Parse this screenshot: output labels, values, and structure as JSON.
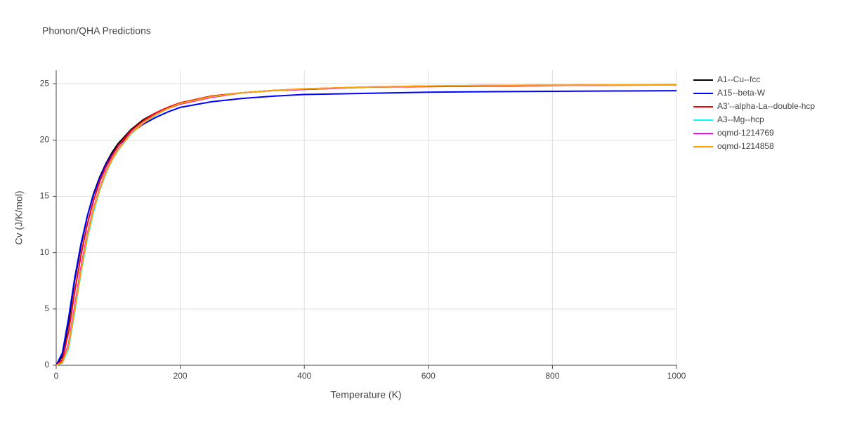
{
  "chart_data": {
    "type": "line",
    "title": "Phonon/QHA Predictions",
    "x_label": "Temperature (K)",
    "y_label": "Cv (J/K/mol)",
    "x": [
      0,
      10,
      20,
      30,
      40,
      50,
      60,
      70,
      80,
      90,
      100,
      120,
      140,
      160,
      180,
      200,
      250,
      300,
      350,
      400,
      500,
      600,
      700,
      800,
      900,
      1000
    ],
    "series": [
      {
        "name": "A1--Cu--fcc",
        "color": "#000000",
        "values": [
          0,
          0.8,
          3.8,
          7.6,
          10.6,
          13.2,
          15.2,
          16.7,
          17.9,
          18.9,
          19.7,
          20.9,
          21.8,
          22.4,
          22.9,
          23.3,
          23.9,
          24.2,
          24.4,
          24.5,
          24.7,
          24.8,
          24.8,
          24.85,
          24.88,
          24.9
        ]
      },
      {
        "name": "A15--beta-W",
        "color": "#0000ff",
        "values": [
          0,
          1.1,
          4.2,
          7.8,
          10.8,
          13.2,
          15.1,
          16.6,
          17.8,
          18.7,
          19.5,
          20.6,
          21.4,
          22.0,
          22.5,
          22.9,
          23.4,
          23.7,
          23.9,
          24.05,
          24.15,
          24.25,
          24.3,
          24.33,
          24.36,
          24.38
        ]
      },
      {
        "name": "A3'--alpha-La--double-hcp",
        "color": "#ff0000",
        "values": [
          0,
          0.5,
          3.0,
          6.6,
          9.8,
          12.5,
          14.6,
          16.3,
          17.6,
          18.6,
          19.5,
          20.8,
          21.7,
          22.4,
          22.9,
          23.3,
          23.9,
          24.2,
          24.4,
          24.55,
          24.7,
          24.75,
          24.8,
          24.85,
          24.88,
          24.9
        ]
      },
      {
        "name": "A3--Mg--hcp",
        "color": "#00ffff",
        "values": [
          0,
          0.2,
          1.5,
          4.8,
          8.2,
          11.2,
          13.6,
          15.5,
          17.0,
          18.2,
          19.1,
          20.5,
          21.5,
          22.2,
          22.8,
          23.2,
          23.8,
          24.2,
          24.4,
          24.5,
          24.7,
          24.8,
          24.85,
          24.87,
          24.89,
          24.9
        ]
      },
      {
        "name": "oqmd-1214769",
        "color": "#ff00ff",
        "values": [
          0,
          0.3,
          1.9,
          5.3,
          8.7,
          11.6,
          13.9,
          15.7,
          17.2,
          18.3,
          19.2,
          20.6,
          21.5,
          22.3,
          22.8,
          23.2,
          23.8,
          24.2,
          24.4,
          24.5,
          24.7,
          24.8,
          24.85,
          24.87,
          24.89,
          24.9
        ]
      },
      {
        "name": "oqmd-1214858",
        "color": "#ffa500",
        "values": [
          0,
          0.25,
          1.7,
          5.0,
          8.4,
          11.4,
          13.8,
          15.6,
          17.1,
          18.25,
          19.15,
          20.55,
          21.5,
          22.25,
          22.8,
          23.25,
          23.85,
          24.2,
          24.4,
          24.55,
          24.7,
          24.8,
          24.85,
          24.87,
          24.89,
          24.9
        ]
      }
    ],
    "xlim": [
      0,
      1000
    ],
    "xticks": [
      0,
      200,
      400,
      600,
      800,
      1000
    ],
    "ylim": [
      0,
      26.2
    ],
    "yticks": [
      0,
      5,
      10,
      15,
      20,
      25
    ],
    "grid": true,
    "legend": "right"
  }
}
